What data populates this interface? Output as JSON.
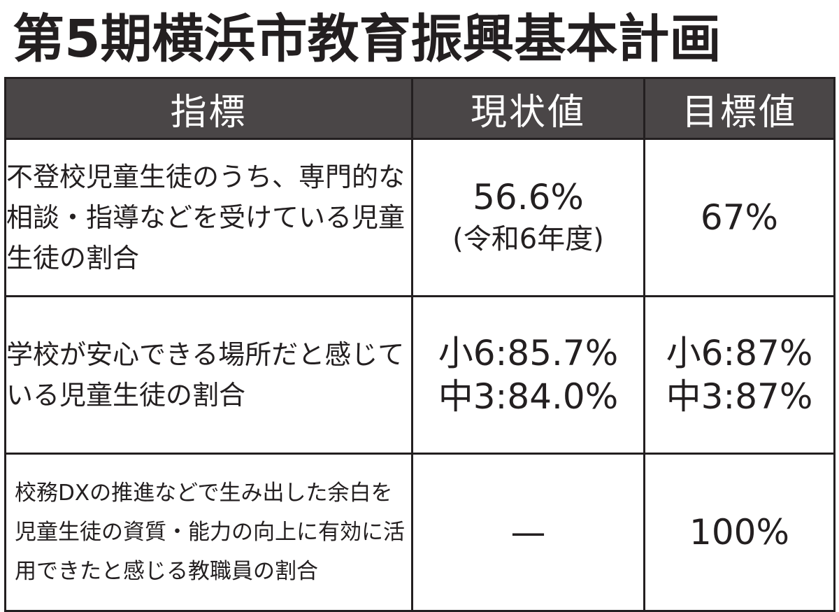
{
  "title": "第5期横浜市教育振興基本計画",
  "table": {
    "headers": [
      "指標",
      "現状値",
      "目標値"
    ],
    "rows": [
      {
        "indicator": "不登校児童生徒のうち、専門的な相談・指導などを受けている児童生徒の割合",
        "current": {
          "line1": "56.6%",
          "line2": "(令和6年度)"
        },
        "target": {
          "line1": "67%"
        }
      },
      {
        "indicator": "学校が安心できる場所だと感じている児童生徒の割合",
        "current": {
          "line1": "小6:85.7%",
          "line2": "中3:84.0%"
        },
        "target": {
          "line1": "小6:87%",
          "line2": "中3:87%"
        }
      },
      {
        "indicator": "校務DXの推進などで生み出した余白を児童生徒の資質・能力の向上に有効に活用できたと感じる教職員の割合",
        "current": {
          "line1": "—"
        },
        "target": {
          "line1": "100%"
        }
      }
    ]
  },
  "colors": {
    "header_bg": "#4a4647",
    "header_text": "#ffffff",
    "text": "#231f20",
    "border": "#231f20",
    "background": "#ffffff"
  }
}
